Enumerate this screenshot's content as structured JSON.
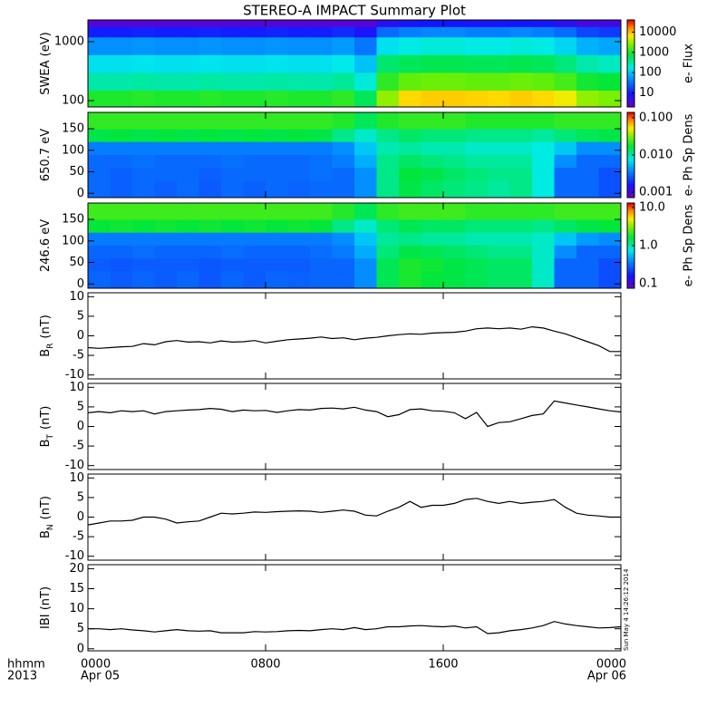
{
  "title": "STEREO-A IMPACT Summary Plot",
  "timestamp": "Sun May  4 14:26:12 2014",
  "corner_labels": [
    "hhmm",
    "2013"
  ],
  "xaxis": {
    "xlim": [
      0,
      24
    ],
    "xticks": [
      {
        "value": 0,
        "label": "0000"
      },
      {
        "value": 8,
        "label": "0800"
      },
      {
        "value": 16,
        "label": "1600"
      },
      {
        "value": 24,
        "label": "0000"
      }
    ],
    "xdates": [
      {
        "value": 0,
        "label": "Apr 05"
      },
      {
        "value": 24,
        "label": "Apr 06"
      }
    ]
  },
  "chart_data": [
    {
      "type": "heatmap",
      "ylabel": "SWEA (eV)",
      "ylog": true,
      "ylim": [
        78,
        2340
      ],
      "yticks": [
        100,
        1000
      ],
      "x_edges": [
        0,
        1,
        2,
        3,
        4,
        5,
        6,
        7,
        8,
        9,
        10,
        11,
        12,
        13,
        14,
        15,
        16,
        17,
        18,
        19,
        20,
        21,
        22,
        23,
        24
      ],
      "y_edges": [
        78,
        150,
        300,
        600,
        1200,
        1800,
        2340
      ],
      "z": [
        [
          1000,
          1000,
          1100,
          1000,
          1000,
          1100,
          1000,
          1000,
          1100,
          1000,
          1000,
          1200,
          600,
          3000,
          8000,
          9000,
          9000,
          8500,
          8000,
          9000,
          8000,
          6000,
          3000,
          2500
        ],
        [
          300,
          300,
          320,
          300,
          300,
          320,
          300,
          300,
          320,
          300,
          300,
          350,
          200,
          1200,
          2000,
          2200,
          2200,
          2000,
          2000,
          2200,
          2000,
          1500,
          900,
          800
        ],
        [
          150,
          150,
          160,
          150,
          150,
          160,
          150,
          150,
          160,
          150,
          150,
          170,
          100,
          500,
          600,
          650,
          650,
          600,
          600,
          650,
          600,
          450,
          300,
          250
        ],
        [
          50,
          50,
          55,
          50,
          50,
          55,
          50,
          50,
          55,
          50,
          50,
          60,
          35,
          150,
          180,
          200,
          200,
          180,
          180,
          200,
          180,
          130,
          80,
          70
        ],
        [
          10,
          10,
          11,
          10,
          10,
          11,
          10,
          10,
          11,
          10,
          10,
          12,
          8,
          30,
          40,
          45,
          45,
          40,
          40,
          45,
          40,
          30,
          18,
          15
        ],
        [
          3,
          3,
          3,
          3,
          3,
          3,
          3,
          3,
          3,
          3,
          3,
          3,
          3,
          6,
          8,
          9,
          9,
          8,
          8,
          9,
          8,
          6,
          4,
          4
        ]
      ],
      "colorbar": {
        "label": "e- Flux",
        "log": true,
        "zlim": [
          2,
          40000
        ],
        "zticks": [
          10,
          100,
          1000,
          10000
        ]
      }
    },
    {
      "type": "heatmap",
      "ylabel": "650.7 eV",
      "ylog": false,
      "ylim": [
        -10,
        188
      ],
      "yticks": [
        0,
        50,
        100,
        150
      ],
      "x_edges": [
        0,
        1,
        2,
        3,
        4,
        5,
        6,
        7,
        8,
        9,
        10,
        11,
        12,
        13,
        14,
        15,
        16,
        17,
        18,
        19,
        20,
        21,
        22,
        23,
        24
      ],
      "y_edges": [
        -10,
        30,
        60,
        90,
        120,
        150,
        188
      ],
      "z": [
        [
          0.003,
          0.0028,
          0.003,
          0.0028,
          0.003,
          0.0027,
          0.003,
          0.0028,
          0.003,
          0.0029,
          0.003,
          0.003,
          0.004,
          0.012,
          0.016,
          0.014,
          0.013,
          0.012,
          0.011,
          0.012,
          0.008,
          0.003,
          0.003,
          0.0025
        ],
        [
          0.003,
          0.0028,
          0.003,
          0.003,
          0.003,
          0.0028,
          0.003,
          0.003,
          0.003,
          0.003,
          0.0032,
          0.003,
          0.004,
          0.012,
          0.017,
          0.016,
          0.014,
          0.013,
          0.012,
          0.012,
          0.008,
          0.003,
          0.003,
          0.0025
        ],
        [
          0.003,
          0.003,
          0.0032,
          0.003,
          0.003,
          0.003,
          0.0032,
          0.003,
          0.003,
          0.003,
          0.0032,
          0.0035,
          0.005,
          0.012,
          0.014,
          0.013,
          0.012,
          0.011,
          0.011,
          0.011,
          0.008,
          0.004,
          0.003,
          0.003
        ],
        [
          0.0035,
          0.0035,
          0.0035,
          0.0035,
          0.0035,
          0.0035,
          0.0035,
          0.0035,
          0.0035,
          0.0035,
          0.0035,
          0.004,
          0.006,
          0.01,
          0.011,
          0.01,
          0.01,
          0.009,
          0.009,
          0.009,
          0.008,
          0.006,
          0.004,
          0.004
        ],
        [
          0.016,
          0.017,
          0.016,
          0.017,
          0.016,
          0.017,
          0.016,
          0.017,
          0.016,
          0.017,
          0.016,
          0.012,
          0.009,
          0.012,
          0.014,
          0.013,
          0.013,
          0.012,
          0.012,
          0.012,
          0.011,
          0.013,
          0.015,
          0.016
        ],
        [
          0.022,
          0.022,
          0.022,
          0.022,
          0.022,
          0.022,
          0.022,
          0.022,
          0.022,
          0.022,
          0.022,
          0.02,
          0.015,
          0.02,
          0.022,
          0.022,
          0.022,
          0.02,
          0.02,
          0.02,
          0.02,
          0.022,
          0.022,
          0.022
        ]
      ],
      "colorbar": {
        "label": "e- Ph Sp Dens",
        "log": true,
        "zlim": [
          0.00072,
          0.139
        ],
        "zticks": [
          {
            "value": 0.1,
            "label": "0.100"
          },
          {
            "value": 0.01,
            "label": "0.010"
          },
          0.001
        ]
      }
    },
    {
      "type": "heatmap",
      "ylabel": "246.6 eV",
      "ylog": false,
      "ylim": [
        -10,
        188
      ],
      "yticks": [
        0,
        50,
        100,
        150
      ],
      "x_edges": [
        0,
        1,
        2,
        3,
        4,
        5,
        6,
        7,
        8,
        9,
        10,
        11,
        12,
        13,
        14,
        15,
        16,
        17,
        18,
        19,
        20,
        21,
        22,
        23,
        24
      ],
      "y_edges": [
        -10,
        30,
        60,
        90,
        120,
        150,
        188
      ],
      "z": [
        [
          0.3,
          0.28,
          0.3,
          0.28,
          0.3,
          0.27,
          0.3,
          0.28,
          0.3,
          0.29,
          0.3,
          0.3,
          0.4,
          1.5,
          1.9,
          1.7,
          1.6,
          1.5,
          1.4,
          1.4,
          0.9,
          0.3,
          0.3,
          0.25
        ],
        [
          0.28,
          0.27,
          0.28,
          0.28,
          0.28,
          0.27,
          0.28,
          0.28,
          0.28,
          0.28,
          0.3,
          0.3,
          0.4,
          1.5,
          1.9,
          1.8,
          1.6,
          1.5,
          1.4,
          1.4,
          0.9,
          0.3,
          0.3,
          0.25
        ],
        [
          0.3,
          0.3,
          0.32,
          0.3,
          0.3,
          0.3,
          0.32,
          0.3,
          0.3,
          0.3,
          0.32,
          0.35,
          0.5,
          1.3,
          1.6,
          1.5,
          1.4,
          1.3,
          1.2,
          1.2,
          0.9,
          0.4,
          0.3,
          0.3
        ],
        [
          0.35,
          0.35,
          0.35,
          0.35,
          0.35,
          0.35,
          0.35,
          0.35,
          0.35,
          0.35,
          0.35,
          0.4,
          0.6,
          1.1,
          1.2,
          1.1,
          1.1,
          1.0,
          1.0,
          1.0,
          0.9,
          0.6,
          0.45,
          0.4
        ],
        [
          1.7,
          1.8,
          1.7,
          1.8,
          1.7,
          1.8,
          1.7,
          1.8,
          1.7,
          1.8,
          1.7,
          1.2,
          0.9,
          1.3,
          1.5,
          1.4,
          1.4,
          1.3,
          1.3,
          1.3,
          1.2,
          1.4,
          1.6,
          1.7
        ],
        [
          2.3,
          2.3,
          2.3,
          2.3,
          2.3,
          2.3,
          2.3,
          2.3,
          2.3,
          2.3,
          2.3,
          2.0,
          1.5,
          2.1,
          2.3,
          2.3,
          2.3,
          2.1,
          2.1,
          2.1,
          2.1,
          2.3,
          2.3,
          2.3
        ]
      ],
      "colorbar": {
        "label": "e- Ph Sp Dens",
        "log": true,
        "zlim": [
          0.076,
          13.1
        ],
        "zticks": [
          {
            "value": 10,
            "label": "10.0"
          },
          {
            "value": 1,
            "label": "1.0"
          },
          0.1
        ]
      }
    },
    {
      "type": "line",
      "ylabel": "B",
      "ysub": "R",
      "yunit": "(nT)",
      "color": "#000000",
      "ylim": [
        -11,
        11
      ],
      "yticks": [
        -10,
        -5,
        0,
        5,
        10
      ],
      "x": [
        0,
        0.5,
        1,
        1.5,
        2,
        2.5,
        3,
        3.5,
        4,
        4.5,
        5,
        5.5,
        6,
        6.5,
        7,
        7.5,
        8,
        8.5,
        9,
        9.5,
        10,
        10.5,
        11,
        11.5,
        12,
        12.5,
        13,
        13.5,
        14,
        14.5,
        15,
        15.5,
        16,
        16.5,
        17,
        17.5,
        18,
        18.5,
        19,
        19.5,
        20,
        20.5,
        21,
        21.5,
        22,
        22.5,
        23,
        23.5,
        24
      ],
      "values": [
        -3,
        -3.2,
        -3,
        -2.8,
        -2.7,
        -2,
        -2.3,
        -1.5,
        -1.2,
        -1.6,
        -1.5,
        -1.8,
        -1.3,
        -1.6,
        -1.5,
        -1.2,
        -1.8,
        -1.4,
        -1,
        -0.8,
        -0.6,
        -0.3,
        -0.7,
        -0.5,
        -1,
        -0.6,
        -0.4,
        0,
        0.3,
        0.5,
        0.4,
        0.7,
        0.8,
        0.9,
        1.2,
        1.8,
        2,
        1.8,
        2,
        1.7,
        2.3,
        2,
        1.2,
        0.5,
        -0.5,
        -1.5,
        -2.5,
        -4,
        -4
      ]
    },
    {
      "type": "line",
      "ylabel": "B",
      "ysub": "T",
      "yunit": "(nT)",
      "color": "#000000",
      "ylim": [
        -11,
        11
      ],
      "yticks": [
        -10,
        -5,
        0,
        5,
        10
      ],
      "x": [
        0,
        0.5,
        1,
        1.5,
        2,
        2.5,
        3,
        3.5,
        4,
        4.5,
        5,
        5.5,
        6,
        6.5,
        7,
        7.5,
        8,
        8.5,
        9,
        9.5,
        10,
        10.5,
        11,
        11.5,
        12,
        12.5,
        13,
        13.5,
        14,
        14.5,
        15,
        15.5,
        16,
        16.5,
        17,
        17.5,
        18,
        18.5,
        19,
        19.5,
        20,
        20.5,
        21,
        21.5,
        22,
        22.5,
        23,
        23.5,
        24
      ],
      "values": [
        3.5,
        3.8,
        3.5,
        4,
        3.8,
        4,
        3.2,
        3.8,
        4,
        4.2,
        4.3,
        4.6,
        4.4,
        3.8,
        4.2,
        4,
        4.1,
        3.6,
        4,
        4.3,
        4.2,
        4.6,
        4.7,
        4.5,
        4.9,
        4.2,
        3.8,
        2.5,
        3,
        4.3,
        4.5,
        4,
        3.9,
        3.5,
        2,
        3.6,
        0,
        1,
        1.2,
        2,
        2.8,
        3.2,
        6.5,
        6,
        5.5,
        5,
        4.5,
        4,
        3.7
      ]
    },
    {
      "type": "line",
      "ylabel": "B",
      "ysub": "N",
      "yunit": "(nT)",
      "color": "#000000",
      "ylim": [
        -11,
        11
      ],
      "yticks": [
        -10,
        -5,
        0,
        5,
        10
      ],
      "x": [
        0,
        0.5,
        1,
        1.5,
        2,
        2.5,
        3,
        3.5,
        4,
        4.5,
        5,
        5.5,
        6,
        6.5,
        7,
        7.5,
        8,
        8.5,
        9,
        9.5,
        10,
        10.5,
        11,
        11.5,
        12,
        12.5,
        13,
        13.5,
        14,
        14.5,
        15,
        15.5,
        16,
        16.5,
        17,
        17.5,
        18,
        18.5,
        19,
        19.5,
        20,
        20.5,
        21,
        21.5,
        22,
        22.5,
        23,
        23.5,
        24
      ],
      "values": [
        -2,
        -1.5,
        -1,
        -1,
        -0.8,
        0,
        0,
        -0.5,
        -1.5,
        -1.2,
        -1,
        0,
        1,
        0.8,
        1,
        1.3,
        1.2,
        1.4,
        1.5,
        1.6,
        1.5,
        1.2,
        1.5,
        1.8,
        1.5,
        0.5,
        0.3,
        1.5,
        2.5,
        4,
        2.5,
        3,
        3,
        3.5,
        4.5,
        4.8,
        4,
        3.5,
        4,
        3.5,
        3.8,
        4,
        4.5,
        2.5,
        1,
        0.5,
        0.3,
        0,
        0
      ]
    },
    {
      "type": "line",
      "ylabel": "IBI (nT)",
      "color": "#000000",
      "ylim": [
        -0.5,
        21
      ],
      "yticks": [
        0,
        5,
        10,
        15,
        20
      ],
      "x": [
        0,
        0.5,
        1,
        1.5,
        2,
        2.5,
        3,
        3.5,
        4,
        4.5,
        5,
        5.5,
        6,
        6.5,
        7,
        7.5,
        8,
        8.5,
        9,
        9.5,
        10,
        10.5,
        11,
        11.5,
        12,
        12.5,
        13,
        13.5,
        14,
        14.5,
        15,
        15.5,
        16,
        16.5,
        17,
        17.5,
        18,
        18.5,
        19,
        19.5,
        20,
        20.5,
        21,
        21.5,
        22,
        22.5,
        23,
        23.5,
        24
      ],
      "values": [
        5,
        5,
        4.8,
        5,
        4.7,
        4.5,
        4.2,
        4.5,
        4.8,
        4.5,
        4.4,
        4.5,
        4,
        4,
        4,
        4.3,
        4.2,
        4.3,
        4.5,
        4.6,
        4.5,
        4.8,
        5,
        4.8,
        5.3,
        4.8,
        5,
        5.5,
        5.5,
        5.7,
        5.8,
        5.6,
        5.5,
        5.7,
        5.2,
        5.5,
        3.8,
        4,
        4.5,
        4.8,
        5.2,
        5.8,
        6.8,
        6.2,
        5.8,
        5.5,
        5.2,
        5.3,
        5.5
      ]
    }
  ]
}
